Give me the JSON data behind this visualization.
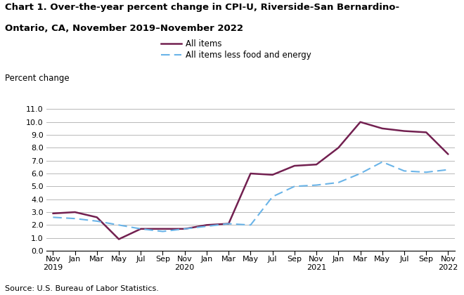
{
  "title_line1": "Chart 1. Over-the-year percent change in CPI-U, Riverside-San Bernardino-",
  "title_line2": "Ontario, CA, November 2019–November 2022",
  "ylabel": "Percent change",
  "source": "Source: U.S. Bureau of Labor Statistics.",
  "all_items_label": "All items",
  "core_label": "All items less food and energy",
  "all_items_color": "#722050",
  "core_color": "#6ab4e8",
  "background_color": "#ffffff",
  "grid_color": "#b8b8b8",
  "ylim": [
    0.0,
    11.0
  ],
  "yticks": [
    0.0,
    1.0,
    2.0,
    3.0,
    4.0,
    5.0,
    6.0,
    7.0,
    8.0,
    9.0,
    10.0,
    11.0
  ],
  "all_items_x": [
    0,
    1,
    2,
    3,
    4,
    5,
    6,
    7,
    8,
    9,
    10,
    11,
    12,
    13,
    14,
    15,
    16,
    17,
    18
  ],
  "all_items_values": [
    2.9,
    3.0,
    2.6,
    0.9,
    1.7,
    1.7,
    1.7,
    2.0,
    2.1,
    6.0,
    5.9,
    6.6,
    6.7,
    8.0,
    10.0,
    9.5,
    9.3,
    9.2,
    7.5
  ],
  "core_x": [
    0,
    1,
    2,
    4,
    5,
    6,
    7,
    8,
    9,
    10,
    11,
    12,
    13,
    14,
    15,
    16,
    17,
    18
  ],
  "core_values": [
    2.6,
    2.5,
    2.3,
    1.7,
    1.5,
    1.7,
    1.9,
    2.1,
    2.0,
    4.2,
    5.0,
    5.1,
    5.3,
    6.0,
    6.9,
    6.2,
    6.1,
    6.3
  ],
  "xtick_positions": [
    0,
    1,
    2,
    3,
    4,
    5,
    6,
    7,
    8,
    9,
    10,
    11,
    12,
    13,
    14,
    15,
    16,
    17,
    18
  ],
  "xtick_labels": [
    "Nov\n2019",
    "Jan",
    "Mar",
    "May",
    "Jul",
    "Sep",
    "Nov\n2020",
    "Jan",
    "Mar",
    "May",
    "Jul",
    "Sep",
    "Nov\n2021",
    "Jan",
    "Mar",
    "May",
    "Jul",
    "Sep",
    "Nov\n2022"
  ],
  "title_fontsize": 9.5,
  "axis_fontsize": 8.5,
  "tick_fontsize": 8.0,
  "source_fontsize": 8.0
}
